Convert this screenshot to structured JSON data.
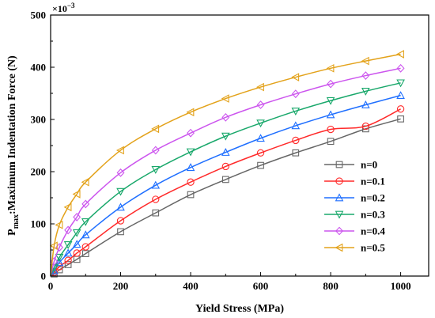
{
  "chart_data": {
    "type": "line",
    "title": "",
    "xlabel": "Yield Stress (MPa)",
    "ylabel_main": "P",
    "ylabel_sub": "max",
    "ylabel_rest": ":Maximum Indentation Force (N)",
    "y_multiplier_base": "×10",
    "y_multiplier_exp": "−3",
    "xlim": [
      0,
      1080
    ],
    "ylim": [
      0,
      500
    ],
    "xticks": [
      0,
      200,
      400,
      600,
      800,
      1000
    ],
    "yticks": [
      0,
      100,
      200,
      300,
      400,
      500
    ],
    "legend_position": "right-middle",
    "x": [
      10,
      25,
      50,
      75,
      100,
      200,
      300,
      400,
      500,
      600,
      700,
      800,
      900,
      1000
    ],
    "series": [
      {
        "name": "n=0",
        "color": "#666666",
        "marker": "square",
        "values": [
          4,
          12,
          22,
          32,
          43,
          85,
          121,
          156,
          185,
          212,
          236,
          258,
          282,
          301
        ]
      },
      {
        "name": "n=0.1",
        "color": "#ff2a2a",
        "marker": "circle",
        "values": [
          7,
          18,
          30,
          44,
          56,
          106,
          147,
          180,
          210,
          236,
          260,
          281,
          287,
          320
        ]
      },
      {
        "name": "n=0.2",
        "color": "#1f6fff",
        "marker": "triangle-up",
        "values": [
          10,
          26,
          44,
          61,
          79,
          132,
          174,
          208,
          237,
          264,
          288,
          309,
          328,
          346
        ]
      },
      {
        "name": "n=0.3",
        "color": "#19a86b",
        "marker": "triangle-down",
        "values": [
          16,
          36,
          60,
          83,
          104,
          162,
          204,
          238,
          268,
          293,
          316,
          336,
          354,
          370
        ]
      },
      {
        "name": "n=0.4",
        "color": "#cc55ee",
        "marker": "diamond",
        "values": [
          28,
          55,
          88,
          113,
          138,
          198,
          241,
          274,
          304,
          328,
          349,
          368,
          384,
          398
        ]
      },
      {
        "name": "n=0.5",
        "color": "#e3a21a",
        "marker": "triangle-left",
        "values": [
          58,
          98,
          132,
          157,
          180,
          241,
          282,
          314,
          340,
          362,
          381,
          398,
          412,
          425
        ]
      }
    ]
  }
}
